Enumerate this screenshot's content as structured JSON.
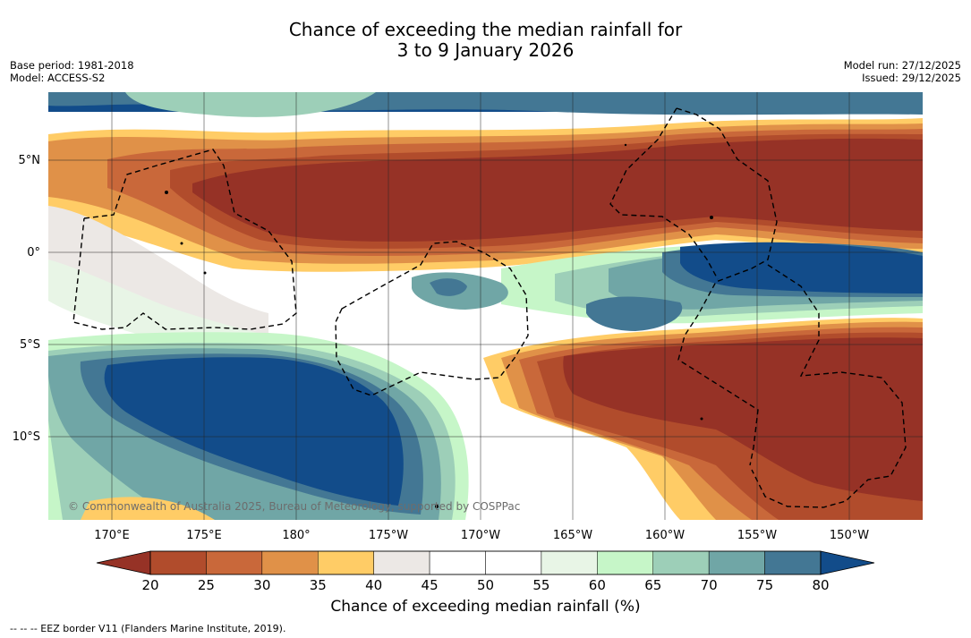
{
  "title": {
    "line1": "Chance of exceeding the median rainfall for",
    "line2": "3 to 9 January 2026"
  },
  "meta": {
    "base_period": "Base period: 1981-2018",
    "model": "Model: ACCESS-S2",
    "model_run": "Model run: 27/12/2025",
    "issued": "Issued: 29/12/2025"
  },
  "map": {
    "lon_labels": [
      "170°E",
      "175°E",
      "180°",
      "175°W",
      "170°W",
      "165°W",
      "160°W",
      "155°W",
      "150°W"
    ],
    "lat_labels": [
      "5°N",
      "0°",
      "5°S",
      "10°S"
    ],
    "copyright": "© Commonwealth of Australia 2025, Bureau of Meteorology, supported by COSPPac"
  },
  "colorbar": {
    "ticks": [
      "20",
      "25",
      "30",
      "35",
      "40",
      "45",
      "50",
      "55",
      "60",
      "65",
      "70",
      "75",
      "80"
    ],
    "colors": [
      "#b14c2c",
      "#c9683a",
      "#e09148",
      "#ffcc66",
      "#ece8e5",
      "#ffffff",
      "#ffffff",
      "#e8f5e6",
      "#c6f6c8",
      "#9dcfb8",
      "#70a6a6",
      "#437794"
    ],
    "under_color": "#963226",
    "over_color": "#124c8a",
    "label": "Chance of exceeding median rainfall (%)"
  },
  "footnote": "--  --  -- EEZ border V11 (Flanders Marine Institute, 2019).",
  "palette": {
    "dark_brown": "#963226",
    "rust": "#b14c2c",
    "orange": "#c9683a",
    "light_orange": "#e09148",
    "yellow": "#ffcc66",
    "grey": "#ece8e5",
    "pale_green": "#e8f5e6",
    "light_green": "#c6f6c8",
    "mint": "#9dcfb8",
    "teal": "#70a6a6",
    "slate": "#437794",
    "navy": "#124c8a"
  }
}
